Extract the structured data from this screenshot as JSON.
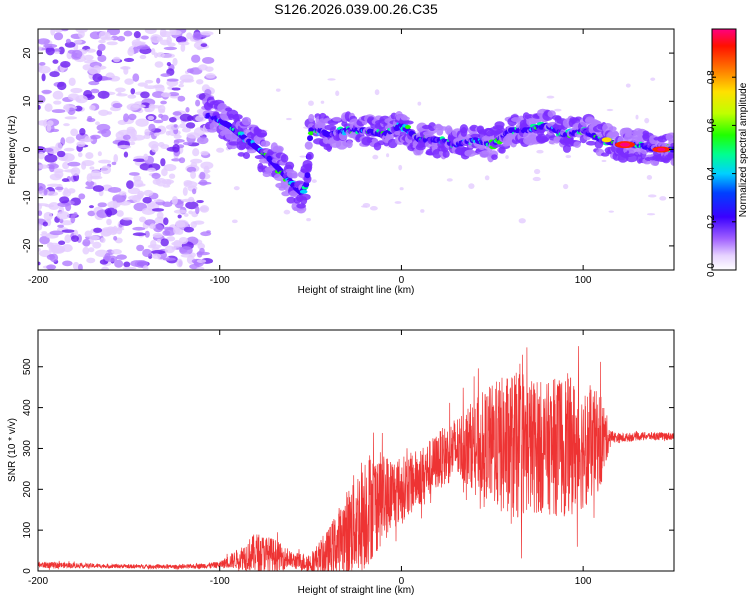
{
  "title": "S126.2026.039.00.26.C35",
  "chart_data": [
    {
      "type": "heatmap",
      "name": "spectrogram",
      "xlabel": "Height of straight line (km)",
      "ylabel": "Frequency (Hz)",
      "xlim": [
        -200,
        150
      ],
      "ylim": [
        -25,
        25
      ],
      "x_ticks": [
        -200,
        -100,
        0,
        100
      ],
      "y_ticks": [
        -20,
        -10,
        0,
        10,
        20
      ],
      "ridge": {
        "description_values": "peak frequency (Hz) vs height (km)",
        "x": [
          -105,
          -95,
          -85,
          -75,
          -65,
          -58,
          -55,
          -52,
          -50,
          -45,
          -40,
          -30,
          -20,
          -10,
          0,
          10,
          20,
          30,
          40,
          50,
          60,
          70,
          80,
          90,
          100,
          110,
          120,
          130,
          140,
          150
        ],
        "y": [
          7,
          5,
          2,
          -1,
          -5,
          -8,
          -9,
          -7,
          4,
          4,
          3,
          4,
          4,
          3,
          5,
          2,
          2,
          1,
          2,
          1,
          4,
          4,
          5,
          3,
          4,
          2,
          1,
          1,
          0,
          0
        ]
      },
      "colorbar": {
        "label": "Normalized spectral amplitude",
        "range": [
          0.0,
          1.0
        ],
        "ticks": [
          0.0,
          0.2,
          0.4,
          0.6,
          0.8
        ]
      }
    },
    {
      "type": "line",
      "name": "snr",
      "xlabel": "Height of straight line (km)",
      "ylabel": "SNR (10 * v/v)",
      "xlim": [
        -200,
        150
      ],
      "ylim": [
        0,
        590
      ],
      "x_ticks": [
        -200,
        -100,
        0,
        100
      ],
      "y_ticks": [
        0,
        100,
        200,
        300,
        400,
        500
      ],
      "color": "#ee3333",
      "series": [
        {
          "name": "SNR envelope",
          "x": [
            -200,
            -160,
            -120,
            -100,
            -90,
            -80,
            -70,
            -60,
            -50,
            -40,
            -30,
            -20,
            -10,
            0,
            10,
            20,
            30,
            40,
            50,
            60,
            70,
            80,
            90,
            100,
            110,
            115,
            120,
            130,
            140,
            150
          ],
          "center": [
            15,
            12,
            10,
            15,
            30,
            45,
            40,
            25,
            20,
            45,
            90,
            150,
            180,
            200,
            230,
            270,
            300,
            310,
            310,
            300,
            310,
            300,
            310,
            300,
            320,
            330,
            325,
            330,
            330,
            330
          ],
          "spread": [
            8,
            5,
            5,
            8,
            25,
            50,
            40,
            20,
            25,
            60,
            110,
            150,
            110,
            80,
            70,
            70,
            80,
            110,
            150,
            190,
            170,
            160,
            180,
            150,
            120,
            15,
            12,
            10,
            10,
            10
          ]
        }
      ]
    }
  ]
}
